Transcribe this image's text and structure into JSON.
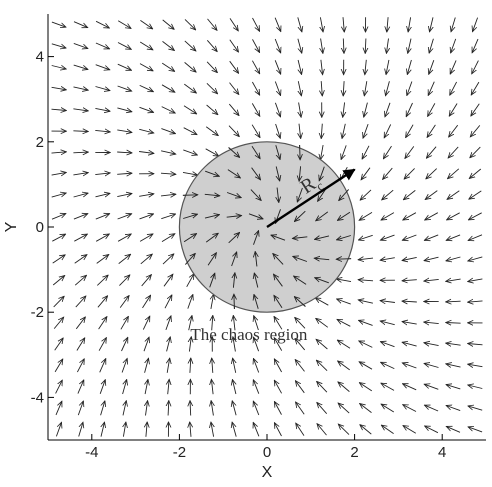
{
  "chart_data": {
    "type": "vector-field",
    "title": "",
    "xlabel": "X",
    "ylabel": "Y",
    "xlim": [
      -5,
      5
    ],
    "ylim": [
      -5,
      5
    ],
    "xticks": [
      -4,
      -2,
      0,
      2,
      4
    ],
    "yticks": [
      4,
      2,
      0,
      -2,
      -4
    ],
    "xtick_labels": [
      "-4",
      "-2",
      "0",
      "2",
      "4"
    ],
    "ytick_labels": [
      "4",
      "2",
      "0",
      "-2",
      "-4"
    ],
    "grid": false,
    "field": {
      "x_start": -5,
      "x_step": 0.5,
      "nx": 20,
      "y_start": -5,
      "y_step": 0.5,
      "ny": 20,
      "description_fn": "u = cos(rotation)*(-x) - sin(rotation)*(-y) style swirl about origin",
      "rotation_deg": 25,
      "arrow_color": "#222222"
    },
    "region": {
      "center": [
        0,
        0
      ],
      "radius": 2,
      "fill": "#c4c4c4",
      "stroke": "#555555",
      "label": "The chaos region"
    },
    "radius_vector": {
      "from": [
        0,
        0
      ],
      "to": [
        2.0,
        1.35
      ],
      "label": "R",
      "label_sub": "c",
      "color": "#000000"
    }
  }
}
